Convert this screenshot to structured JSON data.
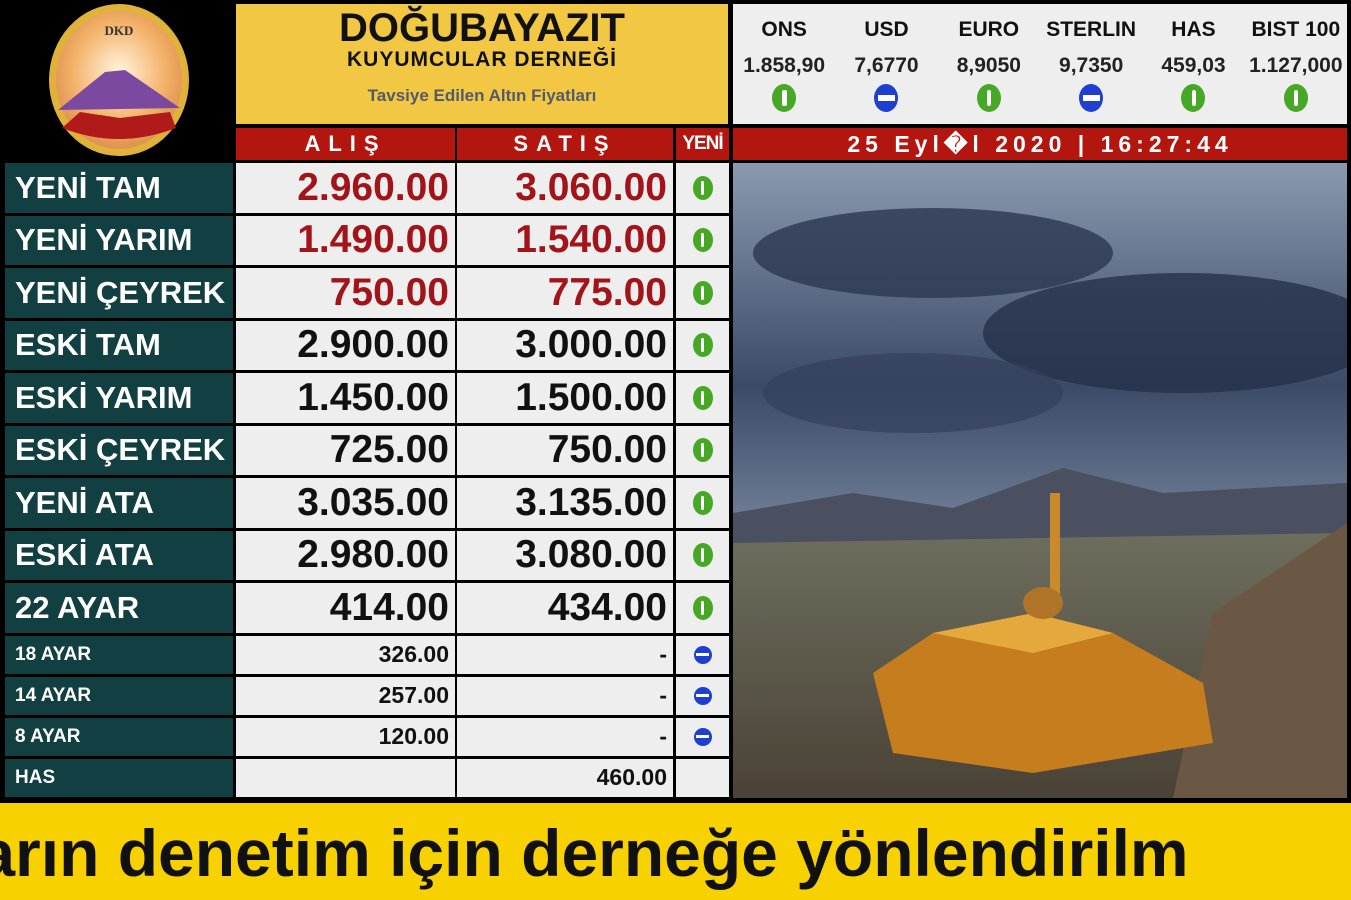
{
  "header": {
    "title": "DOĞUBAYAZIT",
    "subtitle": "KUYUMCULAR DERNEĞİ",
    "tagline": "Tavsiye Edilen Altın Fiyatları",
    "logo_text": "DKD"
  },
  "markets": [
    {
      "name": "ONS",
      "value": "1.858,90",
      "trend": "up"
    },
    {
      "name": "USD",
      "value": "7,6770",
      "trend": "neutral"
    },
    {
      "name": "EURO",
      "value": "8,9050",
      "trend": "up"
    },
    {
      "name": "STERLIN",
      "value": "9,7350",
      "trend": "neutral"
    },
    {
      "name": "HAS",
      "value": "459,03",
      "trend": "up"
    },
    {
      "name": "BIST 100",
      "value": "1.127,000",
      "trend": "up"
    }
  ],
  "columns": {
    "buy": "ALIŞ",
    "sell": "SATIŞ",
    "new": "YENİ"
  },
  "datetime": "25 Eyl�l 2020 | 16:27:44",
  "rows": [
    {
      "label": "YENİ TAM",
      "buy": "2.960.00",
      "sell": "3.060.00",
      "trend": "up",
      "highlight": true
    },
    {
      "label": "YENİ YARIM",
      "buy": "1.490.00",
      "sell": "1.540.00",
      "trend": "up",
      "highlight": true
    },
    {
      "label": "YENİ ÇEYREK",
      "buy": "750.00",
      "sell": "775.00",
      "trend": "up",
      "highlight": true
    },
    {
      "label": "ESKİ TAM",
      "buy": "2.900.00",
      "sell": "3.000.00",
      "trend": "up"
    },
    {
      "label": "ESKİ YARIM",
      "buy": "1.450.00",
      "sell": "1.500.00",
      "trend": "up"
    },
    {
      "label": "ESKİ ÇEYREK",
      "buy": "725.00",
      "sell": "750.00",
      "trend": "up"
    },
    {
      "label": "YENİ ATA",
      "buy": "3.035.00",
      "sell": "3.135.00",
      "trend": "up"
    },
    {
      "label": "ESKİ ATA",
      "buy": "2.980.00",
      "sell": "3.080.00",
      "trend": "up"
    },
    {
      "label": "22 AYAR",
      "buy": "414.00",
      "sell": "434.00",
      "trend": "up"
    },
    {
      "label": "18 AYAR",
      "buy": "326.00",
      "sell": "-",
      "trend": "neutral"
    },
    {
      "label": "14 AYAR",
      "buy": "257.00",
      "sell": "-",
      "trend": "neutral"
    },
    {
      "label": "8 AYAR",
      "buy": "120.00",
      "sell": "-",
      "trend": "neutral"
    },
    {
      "label": "HAS",
      "buy": "",
      "sell": "460.00",
      "trend": ""
    }
  ],
  "ticker": "ların denetim için derneğe yönlendirilm",
  "colors": {
    "brand_yellow": "#f2c744",
    "header_red": "#b3160f",
    "label_teal": "#123f42",
    "price_red": "#a1141a",
    "up_green": "#46a825",
    "neutral_blue": "#1e3fcf"
  }
}
